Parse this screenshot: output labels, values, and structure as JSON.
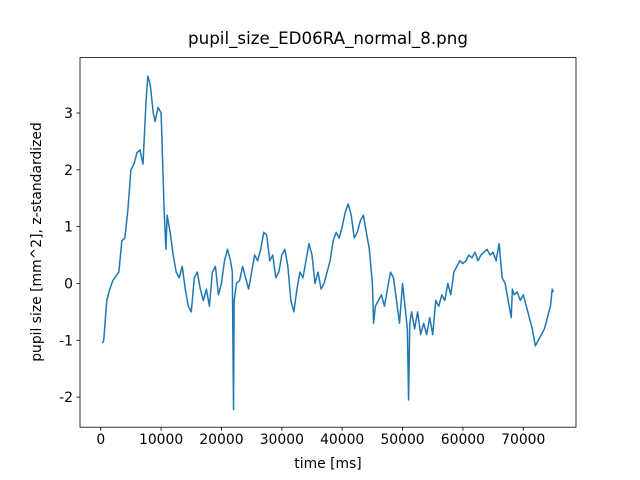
{
  "chart_data": {
    "type": "line",
    "title": "pupil_size_ED06RA_normal_8.png",
    "x_label": "time [ms]",
    "y_label": "pupil size [mm^2], z-standardized",
    "xlim": [
      -3435,
      78735
    ],
    "ylim": [
      -2.53,
      3.975
    ],
    "xticks": [
      0,
      10000,
      20000,
      30000,
      40000,
      50000,
      60000,
      70000
    ],
    "yticks": [
      -2,
      -1,
      0,
      1,
      2,
      3
    ],
    "x": [
      300,
      500,
      1000,
      1500,
      2000,
      3000,
      3500,
      4000,
      4500,
      5000,
      5500,
      6000,
      6500,
      7000,
      7500,
      7800,
      8200,
      8700,
      9000,
      9500,
      10000,
      10300,
      10500,
      10800,
      11000,
      11500,
      12000,
      12500,
      13000,
      13500,
      14000,
      14500,
      15000,
      15500,
      16000,
      16500,
      17000,
      17500,
      18000,
      18500,
      19000,
      19500,
      20000,
      20500,
      21000,
      21500,
      21800,
      22000,
      22100,
      22500,
      23000,
      23500,
      24000,
      24500,
      25000,
      25500,
      26000,
      26500,
      27000,
      27500,
      28000,
      28500,
      29000,
      29500,
      30000,
      30500,
      31000,
      31500,
      32000,
      32500,
      33000,
      33500,
      34000,
      34500,
      35000,
      35500,
      36000,
      36500,
      37000,
      37500,
      38000,
      38500,
      39000,
      39500,
      40000,
      40500,
      41000,
      41500,
      42000,
      42500,
      43000,
      43500,
      44000,
      44500,
      45000,
      45200,
      45500,
      46000,
      46500,
      47000,
      47500,
      48000,
      48500,
      49000,
      49500,
      50000,
      50500,
      50800,
      51000,
      51200,
      51500,
      52000,
      52500,
      53000,
      53500,
      54000,
      54500,
      55000,
      55500,
      56000,
      56500,
      57000,
      57500,
      58000,
      58500,
      59000,
      59500,
      60000,
      60500,
      61000,
      61500,
      62000,
      62500,
      63000,
      63500,
      64000,
      64500,
      65000,
      65500,
      66000,
      66500,
      67000,
      67500,
      68000,
      68200,
      68500,
      69000,
      69500,
      70000,
      70500,
      71000,
      71500,
      72000,
      72500,
      73000,
      73500,
      74000,
      74500,
      74800,
      75000
    ],
    "series": [
      {
        "name": "pupil size",
        "color": "#1f77b4",
        "values": [
          -1.05,
          -1.0,
          -0.3,
          -0.1,
          0.05,
          0.2,
          0.75,
          0.8,
          1.3,
          2.0,
          2.1,
          2.3,
          2.35,
          2.1,
          3.2,
          3.65,
          3.5,
          3.0,
          2.85,
          3.1,
          3.0,
          2.0,
          1.3,
          0.6,
          1.2,
          0.9,
          0.5,
          0.2,
          0.1,
          0.3,
          -0.1,
          -0.4,
          -0.5,
          0.1,
          0.2,
          -0.1,
          -0.3,
          -0.1,
          -0.4,
          0.2,
          0.3,
          -0.2,
          0.0,
          0.4,
          0.6,
          0.4,
          0.2,
          -2.22,
          -0.3,
          0.0,
          0.05,
          0.3,
          0.1,
          -0.1,
          0.2,
          0.5,
          0.4,
          0.6,
          0.9,
          0.85,
          0.4,
          0.5,
          0.1,
          0.2,
          0.5,
          0.6,
          0.3,
          -0.3,
          -0.5,
          -0.1,
          0.2,
          0.1,
          0.4,
          0.7,
          0.5,
          0.0,
          0.2,
          -0.1,
          0.0,
          0.2,
          0.4,
          0.75,
          0.9,
          0.8,
          1.0,
          1.25,
          1.4,
          1.2,
          0.8,
          0.9,
          1.1,
          1.2,
          0.9,
          0.6,
          0.0,
          -0.7,
          -0.4,
          -0.3,
          -0.2,
          -0.4,
          -0.1,
          0.2,
          0.1,
          -0.3,
          -0.7,
          0.0,
          -0.5,
          -0.8,
          -2.05,
          -0.7,
          -0.5,
          -0.8,
          -0.5,
          -0.9,
          -0.7,
          -0.9,
          -0.6,
          -0.9,
          -0.3,
          -0.4,
          -0.2,
          -0.3,
          0.0,
          -0.2,
          0.2,
          0.3,
          0.4,
          0.35,
          0.4,
          0.5,
          0.45,
          0.55,
          0.4,
          0.5,
          0.55,
          0.6,
          0.5,
          0.55,
          0.4,
          0.7,
          0.1,
          0.0,
          -0.3,
          -0.6,
          -0.1,
          -0.2,
          -0.15,
          -0.3,
          -0.2,
          -0.4,
          -0.6,
          -0.8,
          -1.1,
          -1.0,
          -0.9,
          -0.8,
          -0.6,
          -0.4,
          -0.1,
          -0.15
        ]
      }
    ]
  }
}
